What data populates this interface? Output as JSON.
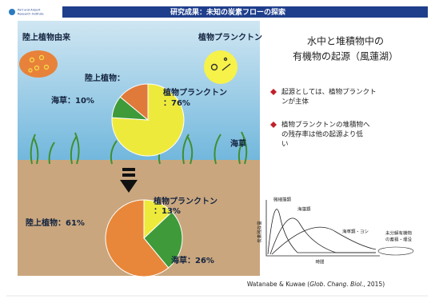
{
  "header": {
    "logo_text": [
      "Port and Airport",
      "Research Institute"
    ],
    "title": "研究成果：未知の炭素フローの探索"
  },
  "illustration": {
    "source_labels": [
      "陸上植物由来",
      "植物プランクトン"
    ],
    "seagrass_label": "海草",
    "pies": [
      {
        "slices": [
          {
            "value": 76,
            "color": "#eeea3c",
            "label": [
              "植物プランクトン",
              "：76%"
            ]
          },
          {
            "value": 10,
            "color": "#3f9a3a",
            "label": [
              "海草：10%"
            ]
          },
          {
            "value": 14,
            "color": "#e07a3a",
            "label": [
              "陸上植物："
            ]
          }
        ]
      },
      {
        "slices": [
          {
            "value": 13,
            "color": "#eeea3c",
            "label": [
              "植物プランクトン",
              "：13%"
            ]
          },
          {
            "value": 26,
            "color": "#3f9a3a",
            "label": [
              "海草：26%"
            ]
          },
          {
            "value": 61,
            "color": "#e8873a",
            "label": [
              "陸上植物：61%"
            ]
          }
        ]
      }
    ]
  },
  "panel": {
    "heading": [
      "水中と堆積物中の",
      "有機物の起源（風蓮湖）"
    ],
    "bullets": [
      [
        "起源としては、植物プランクト",
        "ンが主体"
      ],
      [
        "植物プランクトンの堆積物へ",
        "の残存率は他の起源より低",
        "い"
      ]
    ]
  },
  "graph": {
    "y_label": "炭素残存量",
    "x_label": "時間",
    "curves": [
      "微細藻類",
      "海藻類",
      "海草類・ヨシ"
    ],
    "note": [
      "未分解有機物",
      "の蓄積・埋没"
    ]
  },
  "citation": [
    "Watanabe & Kuwae (",
    "Glob. Chang. Biol.",
    ", 2015)"
  ]
}
